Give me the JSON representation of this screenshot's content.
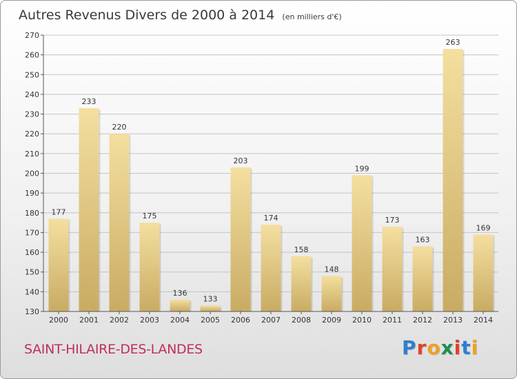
{
  "header": {
    "title": "Autres Revenus Divers de 2000 à 2014",
    "unit": "(en milliers d'€)"
  },
  "footer": {
    "commune": "SAINT-HILAIRE-DES-LANDES",
    "logo_letters": [
      "P",
      "r",
      "o",
      "x",
      "i",
      "t",
      "i"
    ],
    "logo_colors": [
      "#2f7fd0",
      "#e0422a",
      "#f0a020",
      "#1f8f4c",
      "#e0422a",
      "#2f7fd0",
      "#f0a020"
    ]
  },
  "chart_data": {
    "type": "bar",
    "categories": [
      "2000",
      "2001",
      "2002",
      "2003",
      "2004",
      "2005",
      "2006",
      "2007",
      "2008",
      "2009",
      "2010",
      "2011",
      "2012",
      "2013",
      "2014"
    ],
    "values": [
      177,
      233,
      220,
      175,
      136,
      133,
      203,
      174,
      158,
      148,
      199,
      173,
      163,
      263,
      169
    ],
    "ylim": [
      130,
      270
    ],
    "yticks": [
      130,
      140,
      150,
      160,
      170,
      180,
      190,
      200,
      210,
      220,
      230,
      240,
      250,
      260,
      270
    ],
    "grid": true,
    "colors": {
      "bar_top": "#f4dfa0",
      "bar_bottom": "#c9ab63",
      "grid": "#c4c4c4",
      "axis": "#555555",
      "text": "#333333"
    }
  }
}
